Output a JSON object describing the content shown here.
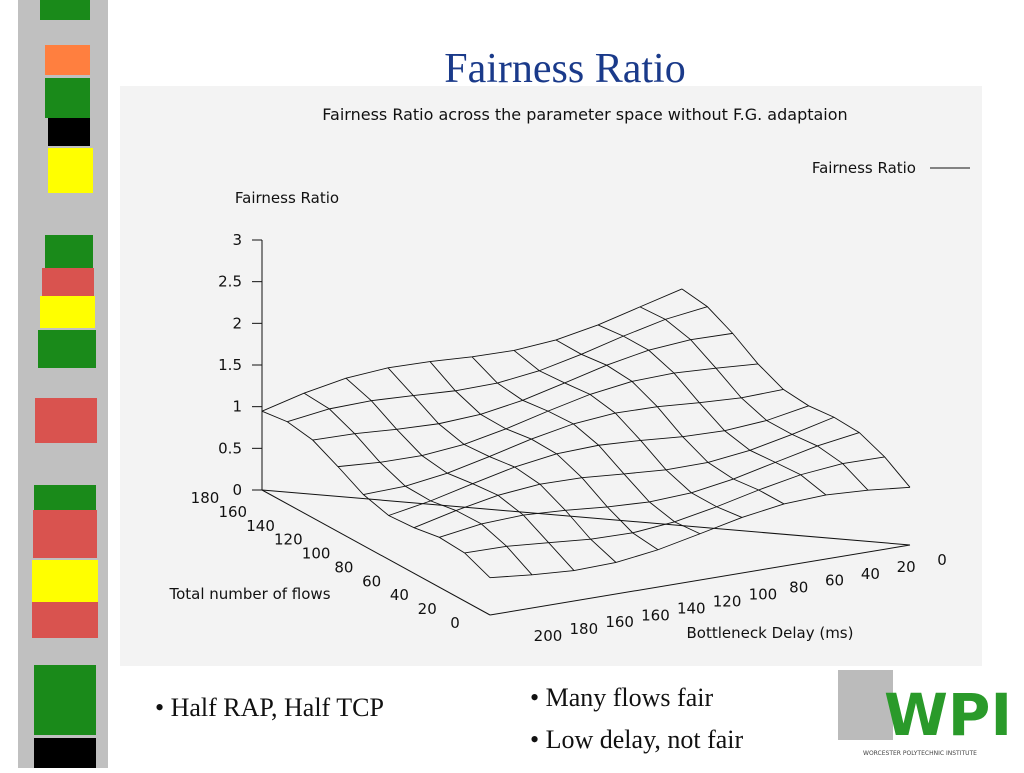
{
  "title": "Fairness Ratio",
  "figure": {
    "title": "Fairness Ratio across the parameter space without F.G. adaptaion",
    "legend": "Fairness Ratio",
    "z_label": "Fairness Ratio",
    "z_ticks": [
      "3",
      "2.5",
      "2",
      "1.5",
      "1",
      "0.5",
      "0"
    ],
    "y_label": "Total number of flows",
    "y_ticks": [
      "180",
      "160",
      "140",
      "120",
      "100",
      "80",
      "60",
      "40",
      "20",
      "0"
    ],
    "x_label": "Bottleneck Delay (ms)",
    "x_ticks": [
      "200",
      "180",
      "160",
      "160",
      "140",
      "120",
      "100",
      "80",
      "60",
      "40",
      "20",
      "0"
    ]
  },
  "bullets_left": [
    "• Half RAP, Half TCP"
  ],
  "bullets_right": [
    "• Many flows fair",
    "• Low delay, not fair"
  ],
  "logo": {
    "text": "WPI",
    "subtitle": "WORCESTER POLYTECHNIC INSTITUTE"
  }
}
